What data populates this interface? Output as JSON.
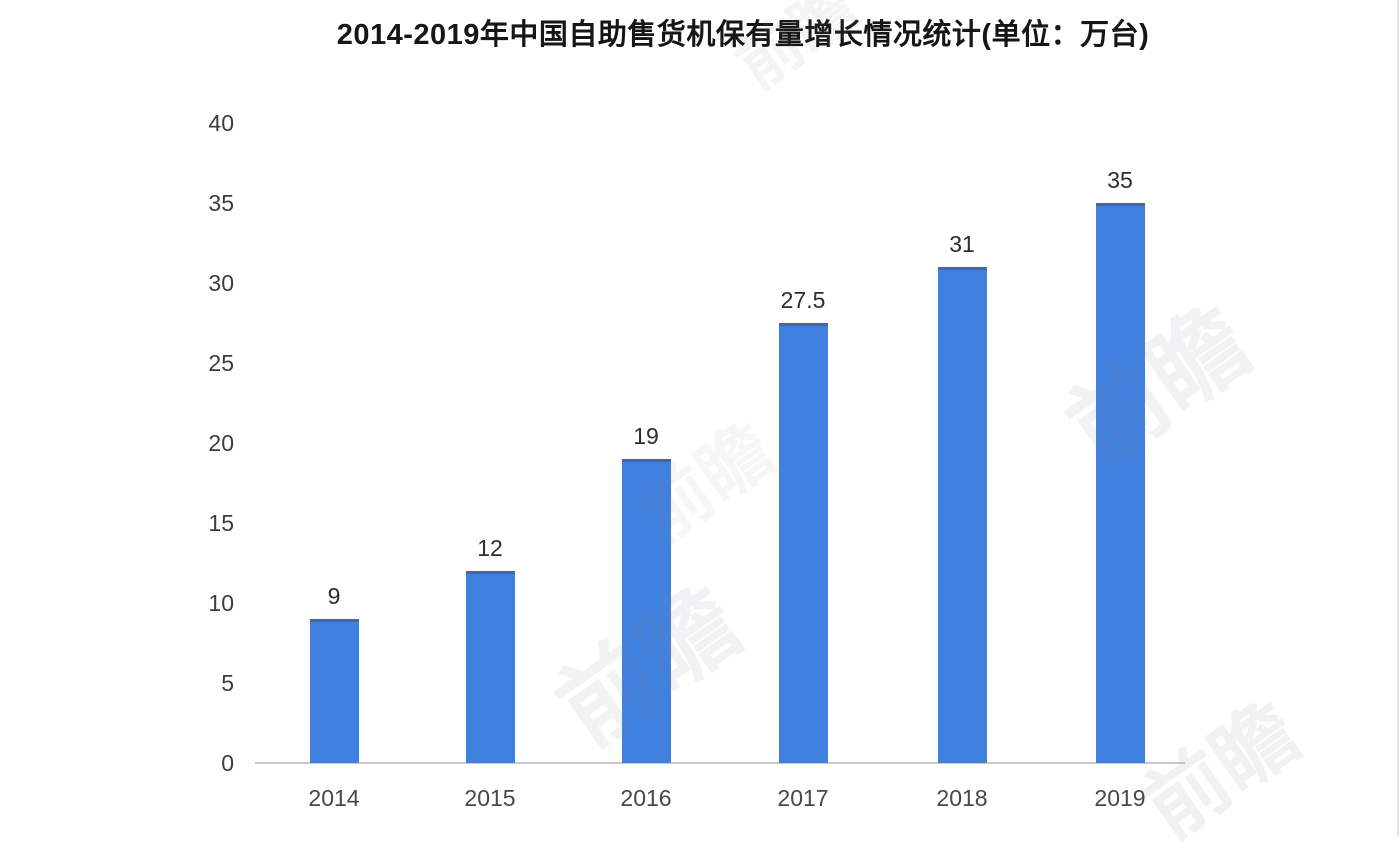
{
  "chart_data": {
    "type": "bar",
    "title": "2014-2019年中国自助售货机保有量增长情况统计(单位：万台)",
    "unit_label": "万台",
    "categories": [
      "2014",
      "2015",
      "2016",
      "2017",
      "2018",
      "2019"
    ],
    "values": [
      9,
      12,
      19,
      27.5,
      31,
      35
    ],
    "value_labels": [
      "9",
      "12",
      "19",
      "27.5",
      "31",
      "35"
    ],
    "xlabel": "",
    "ylabel": "",
    "ylim": [
      0,
      40
    ],
    "yticks": [
      0,
      5,
      10,
      15,
      20,
      25,
      30,
      35,
      40
    ],
    "grid": false,
    "legend_position": "none",
    "bar_color": "#4080df",
    "axis_line_color": "#c9c9cd",
    "tick_label_color": "#3d3d3d",
    "title_color": "#161616"
  },
  "watermark": {
    "text": "前瞻"
  }
}
